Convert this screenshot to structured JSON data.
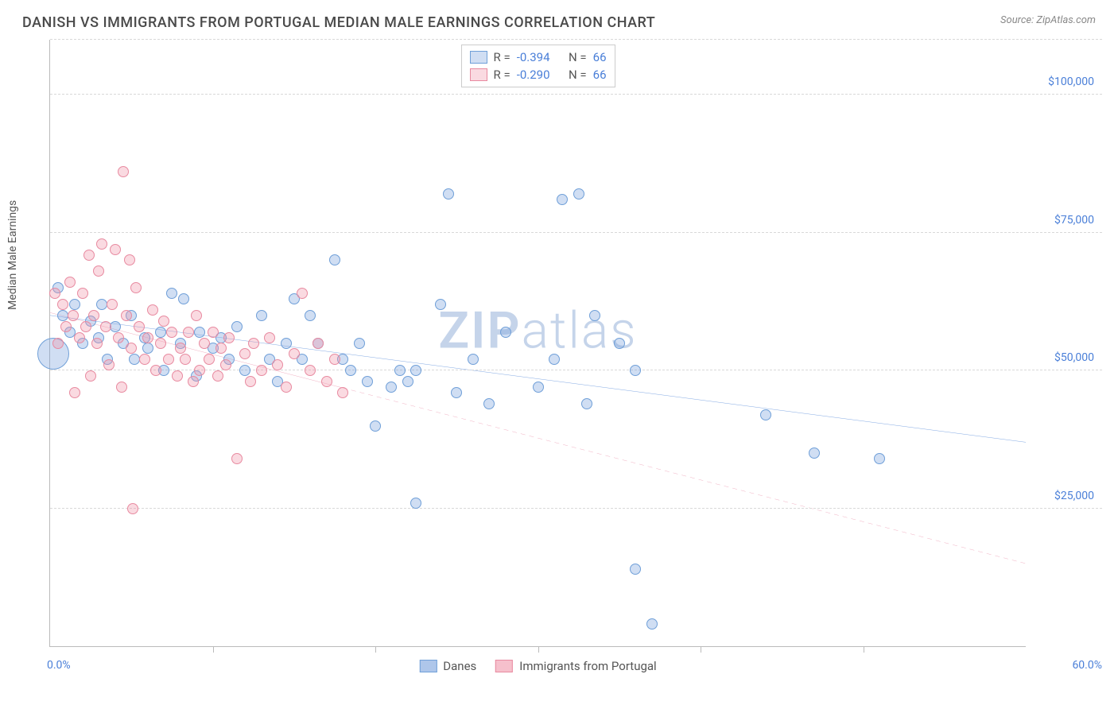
{
  "header": {
    "title": "DANISH VS IMMIGRANTS FROM PORTUGAL MEDIAN MALE EARNINGS CORRELATION CHART",
    "source": "Source: ZipAtlas.com"
  },
  "watermark": {
    "bold": "ZIP",
    "light": "atlas"
  },
  "chart": {
    "type": "scatter",
    "y_label": "Median Male Earnings",
    "xlim": [
      0,
      60
    ],
    "ylim": [
      0,
      110000
    ],
    "x_range_labels": {
      "min": "0.0%",
      "max": "60.0%"
    },
    "x_tick_positions": [
      10,
      20,
      30,
      40,
      50
    ],
    "y_gridlines": [
      {
        "v": 25000,
        "label": "$25,000"
      },
      {
        "v": 50000,
        "label": "$50,000"
      },
      {
        "v": 75000,
        "label": "$75,000"
      },
      {
        "v": 100000,
        "label": "$100,000"
      },
      {
        "v": 110000,
        "label": ""
      }
    ],
    "grid_color": "#d8d8d8",
    "background_color": "#ffffff",
    "series": [
      {
        "name": "Danes",
        "label": "Danes",
        "fill": "rgba(120,160,220,0.35)",
        "stroke": "#6f9fd8",
        "trend_color": "#2f6fd0",
        "trend_width": 2.5,
        "trend_dash": "",
        "correlation": {
          "R": "-0.394",
          "N": "66"
        },
        "trend": {
          "x1": 0,
          "y1": 60000,
          "x2": 60,
          "y2": 37000
        },
        "points": [
          {
            "x": 0.2,
            "y": 53000,
            "r": 20
          },
          {
            "x": 0.5,
            "y": 65000,
            "r": 7
          },
          {
            "x": 0.8,
            "y": 60000,
            "r": 7
          },
          {
            "x": 1.5,
            "y": 62000,
            "r": 7
          },
          {
            "x": 1.2,
            "y": 57000,
            "r": 7
          },
          {
            "x": 2.0,
            "y": 55000,
            "r": 7
          },
          {
            "x": 2.5,
            "y": 59000,
            "r": 7
          },
          {
            "x": 3.0,
            "y": 56000,
            "r": 7
          },
          {
            "x": 3.2,
            "y": 62000,
            "r": 7
          },
          {
            "x": 3.5,
            "y": 52000,
            "r": 7
          },
          {
            "x": 4.0,
            "y": 58000,
            "r": 7
          },
          {
            "x": 4.5,
            "y": 55000,
            "r": 7
          },
          {
            "x": 5.0,
            "y": 60000,
            "r": 7
          },
          {
            "x": 5.2,
            "y": 52000,
            "r": 7
          },
          {
            "x": 5.8,
            "y": 56000,
            "r": 7
          },
          {
            "x": 6.0,
            "y": 54000,
            "r": 7
          },
          {
            "x": 6.8,
            "y": 57000,
            "r": 7
          },
          {
            "x": 7.0,
            "y": 50000,
            "r": 7
          },
          {
            "x": 7.5,
            "y": 64000,
            "r": 7
          },
          {
            "x": 8.0,
            "y": 55000,
            "r": 7
          },
          {
            "x": 8.2,
            "y": 63000,
            "r": 7
          },
          {
            "x": 9.0,
            "y": 49000,
            "r": 7
          },
          {
            "x": 9.2,
            "y": 57000,
            "r": 7
          },
          {
            "x": 10.0,
            "y": 54000,
            "r": 7
          },
          {
            "x": 10.5,
            "y": 56000,
            "r": 7
          },
          {
            "x": 11.0,
            "y": 52000,
            "r": 7
          },
          {
            "x": 11.5,
            "y": 58000,
            "r": 7
          },
          {
            "x": 12.0,
            "y": 50000,
            "r": 7
          },
          {
            "x": 13.0,
            "y": 60000,
            "r": 7
          },
          {
            "x": 13.5,
            "y": 52000,
            "r": 7
          },
          {
            "x": 14.0,
            "y": 48000,
            "r": 7
          },
          {
            "x": 14.5,
            "y": 55000,
            "r": 7
          },
          {
            "x": 15.0,
            "y": 63000,
            "r": 7
          },
          {
            "x": 15.5,
            "y": 52000,
            "r": 7
          },
          {
            "x": 16.0,
            "y": 60000,
            "r": 7
          },
          {
            "x": 16.5,
            "y": 55000,
            "r": 7
          },
          {
            "x": 17.5,
            "y": 70000,
            "r": 7
          },
          {
            "x": 18.0,
            "y": 52000,
            "r": 7
          },
          {
            "x": 18.5,
            "y": 50000,
            "r": 7
          },
          {
            "x": 19.0,
            "y": 55000,
            "r": 7
          },
          {
            "x": 19.5,
            "y": 48000,
            "r": 7
          },
          {
            "x": 20.0,
            "y": 40000,
            "r": 7
          },
          {
            "x": 21.0,
            "y": 47000,
            "r": 7
          },
          {
            "x": 21.5,
            "y": 50000,
            "r": 7
          },
          {
            "x": 22.0,
            "y": 48000,
            "r": 7
          },
          {
            "x": 22.5,
            "y": 26000,
            "r": 7
          },
          {
            "x": 22.5,
            "y": 50000,
            "r": 7
          },
          {
            "x": 24.0,
            "y": 62000,
            "r": 7
          },
          {
            "x": 24.5,
            "y": 82000,
            "r": 7
          },
          {
            "x": 25.0,
            "y": 46000,
            "r": 7
          },
          {
            "x": 26.0,
            "y": 52000,
            "r": 7
          },
          {
            "x": 27.0,
            "y": 44000,
            "r": 7
          },
          {
            "x": 28.0,
            "y": 57000,
            "r": 7
          },
          {
            "x": 30.0,
            "y": 47000,
            "r": 7
          },
          {
            "x": 31.0,
            "y": 52000,
            "r": 7
          },
          {
            "x": 31.5,
            "y": 81000,
            "r": 7
          },
          {
            "x": 32.5,
            "y": 82000,
            "r": 7
          },
          {
            "x": 33.0,
            "y": 44000,
            "r": 7
          },
          {
            "x": 33.5,
            "y": 60000,
            "r": 7
          },
          {
            "x": 35.0,
            "y": 55000,
            "r": 7
          },
          {
            "x": 36.0,
            "y": 14000,
            "r": 7
          },
          {
            "x": 37.0,
            "y": 4000,
            "r": 7
          },
          {
            "x": 44.0,
            "y": 42000,
            "r": 7
          },
          {
            "x": 47.0,
            "y": 35000,
            "r": 7
          },
          {
            "x": 51.0,
            "y": 34000,
            "r": 7
          },
          {
            "x": 36.0,
            "y": 50000,
            "r": 7
          }
        ]
      },
      {
        "name": "Immigrants from Portugal",
        "label": "Immigrants from Portugal",
        "fill": "rgba(240,150,170,0.35)",
        "stroke": "#e88aa0",
        "trend_color": "#e05a80",
        "trend_width": 2,
        "trend_dash": "6 5",
        "correlation": {
          "R": "-0.290",
          "N": "66"
        },
        "trend": {
          "x1": 0,
          "y1": 60500,
          "x2": 60,
          "y2": 15000,
          "solid_until": 18
        },
        "points": [
          {
            "x": 0.3,
            "y": 64000,
            "r": 7
          },
          {
            "x": 0.5,
            "y": 55000,
            "r": 7
          },
          {
            "x": 0.8,
            "y": 62000,
            "r": 7
          },
          {
            "x": 1.0,
            "y": 58000,
            "r": 7
          },
          {
            "x": 1.2,
            "y": 66000,
            "r": 7
          },
          {
            "x": 1.4,
            "y": 60000,
            "r": 7
          },
          {
            "x": 1.5,
            "y": 46000,
            "r": 7
          },
          {
            "x": 1.8,
            "y": 56000,
            "r": 7
          },
          {
            "x": 2.0,
            "y": 64000,
            "r": 7
          },
          {
            "x": 2.2,
            "y": 58000,
            "r": 7
          },
          {
            "x": 2.4,
            "y": 71000,
            "r": 7
          },
          {
            "x": 2.5,
            "y": 49000,
            "r": 7
          },
          {
            "x": 2.7,
            "y": 60000,
            "r": 7
          },
          {
            "x": 2.9,
            "y": 55000,
            "r": 7
          },
          {
            "x": 3.0,
            "y": 68000,
            "r": 7
          },
          {
            "x": 3.2,
            "y": 73000,
            "r": 7
          },
          {
            "x": 3.4,
            "y": 58000,
            "r": 7
          },
          {
            "x": 3.6,
            "y": 51000,
            "r": 7
          },
          {
            "x": 3.8,
            "y": 62000,
            "r": 7
          },
          {
            "x": 4.0,
            "y": 72000,
            "r": 7
          },
          {
            "x": 4.2,
            "y": 56000,
            "r": 7
          },
          {
            "x": 4.4,
            "y": 47000,
            "r": 7
          },
          {
            "x": 4.5,
            "y": 86000,
            "r": 7
          },
          {
            "x": 4.7,
            "y": 60000,
            "r": 7
          },
          {
            "x": 4.9,
            "y": 70000,
            "r": 7
          },
          {
            "x": 5.0,
            "y": 54000,
            "r": 7
          },
          {
            "x": 5.1,
            "y": 25000,
            "r": 7
          },
          {
            "x": 5.3,
            "y": 65000,
            "r": 7
          },
          {
            "x": 5.5,
            "y": 58000,
            "r": 7
          },
          {
            "x": 5.8,
            "y": 52000,
            "r": 7
          },
          {
            "x": 6.0,
            "y": 56000,
            "r": 7
          },
          {
            "x": 6.3,
            "y": 61000,
            "r": 7
          },
          {
            "x": 6.5,
            "y": 50000,
            "r": 7
          },
          {
            "x": 6.8,
            "y": 55000,
            "r": 7
          },
          {
            "x": 7.0,
            "y": 59000,
            "r": 7
          },
          {
            "x": 7.3,
            "y": 52000,
            "r": 7
          },
          {
            "x": 7.5,
            "y": 57000,
            "r": 7
          },
          {
            "x": 7.8,
            "y": 49000,
            "r": 7
          },
          {
            "x": 8.0,
            "y": 54000,
            "r": 7
          },
          {
            "x": 8.3,
            "y": 52000,
            "r": 7
          },
          {
            "x": 8.5,
            "y": 57000,
            "r": 7
          },
          {
            "x": 8.8,
            "y": 48000,
            "r": 7
          },
          {
            "x": 9.0,
            "y": 60000,
            "r": 7
          },
          {
            "x": 9.2,
            "y": 50000,
            "r": 7
          },
          {
            "x": 9.5,
            "y": 55000,
            "r": 7
          },
          {
            "x": 9.8,
            "y": 52000,
            "r": 7
          },
          {
            "x": 10.0,
            "y": 57000,
            "r": 7
          },
          {
            "x": 10.3,
            "y": 49000,
            "r": 7
          },
          {
            "x": 10.5,
            "y": 54000,
            "r": 7
          },
          {
            "x": 10.8,
            "y": 51000,
            "r": 7
          },
          {
            "x": 11.0,
            "y": 56000,
            "r": 7
          },
          {
            "x": 11.5,
            "y": 34000,
            "r": 7
          },
          {
            "x": 12.0,
            "y": 53000,
            "r": 7
          },
          {
            "x": 12.3,
            "y": 48000,
            "r": 7
          },
          {
            "x": 12.5,
            "y": 55000,
            "r": 7
          },
          {
            "x": 13.0,
            "y": 50000,
            "r": 7
          },
          {
            "x": 13.5,
            "y": 56000,
            "r": 7
          },
          {
            "x": 14.0,
            "y": 51000,
            "r": 7
          },
          {
            "x": 14.5,
            "y": 47000,
            "r": 7
          },
          {
            "x": 15.0,
            "y": 53000,
            "r": 7
          },
          {
            "x": 15.5,
            "y": 64000,
            "r": 7
          },
          {
            "x": 16.0,
            "y": 50000,
            "r": 7
          },
          {
            "x": 16.5,
            "y": 55000,
            "r": 7
          },
          {
            "x": 17.0,
            "y": 48000,
            "r": 7
          },
          {
            "x": 17.5,
            "y": 52000,
            "r": 7
          },
          {
            "x": 18.0,
            "y": 46000,
            "r": 7
          }
        ]
      }
    ],
    "bottom_legend": [
      {
        "swatch_fill": "rgba(120,160,220,0.6)",
        "swatch_stroke": "#6f9fd8",
        "label": "Danes"
      },
      {
        "swatch_fill": "rgba(240,150,170,0.6)",
        "swatch_stroke": "#e88aa0",
        "label": "Immigrants from Portugal"
      }
    ]
  }
}
